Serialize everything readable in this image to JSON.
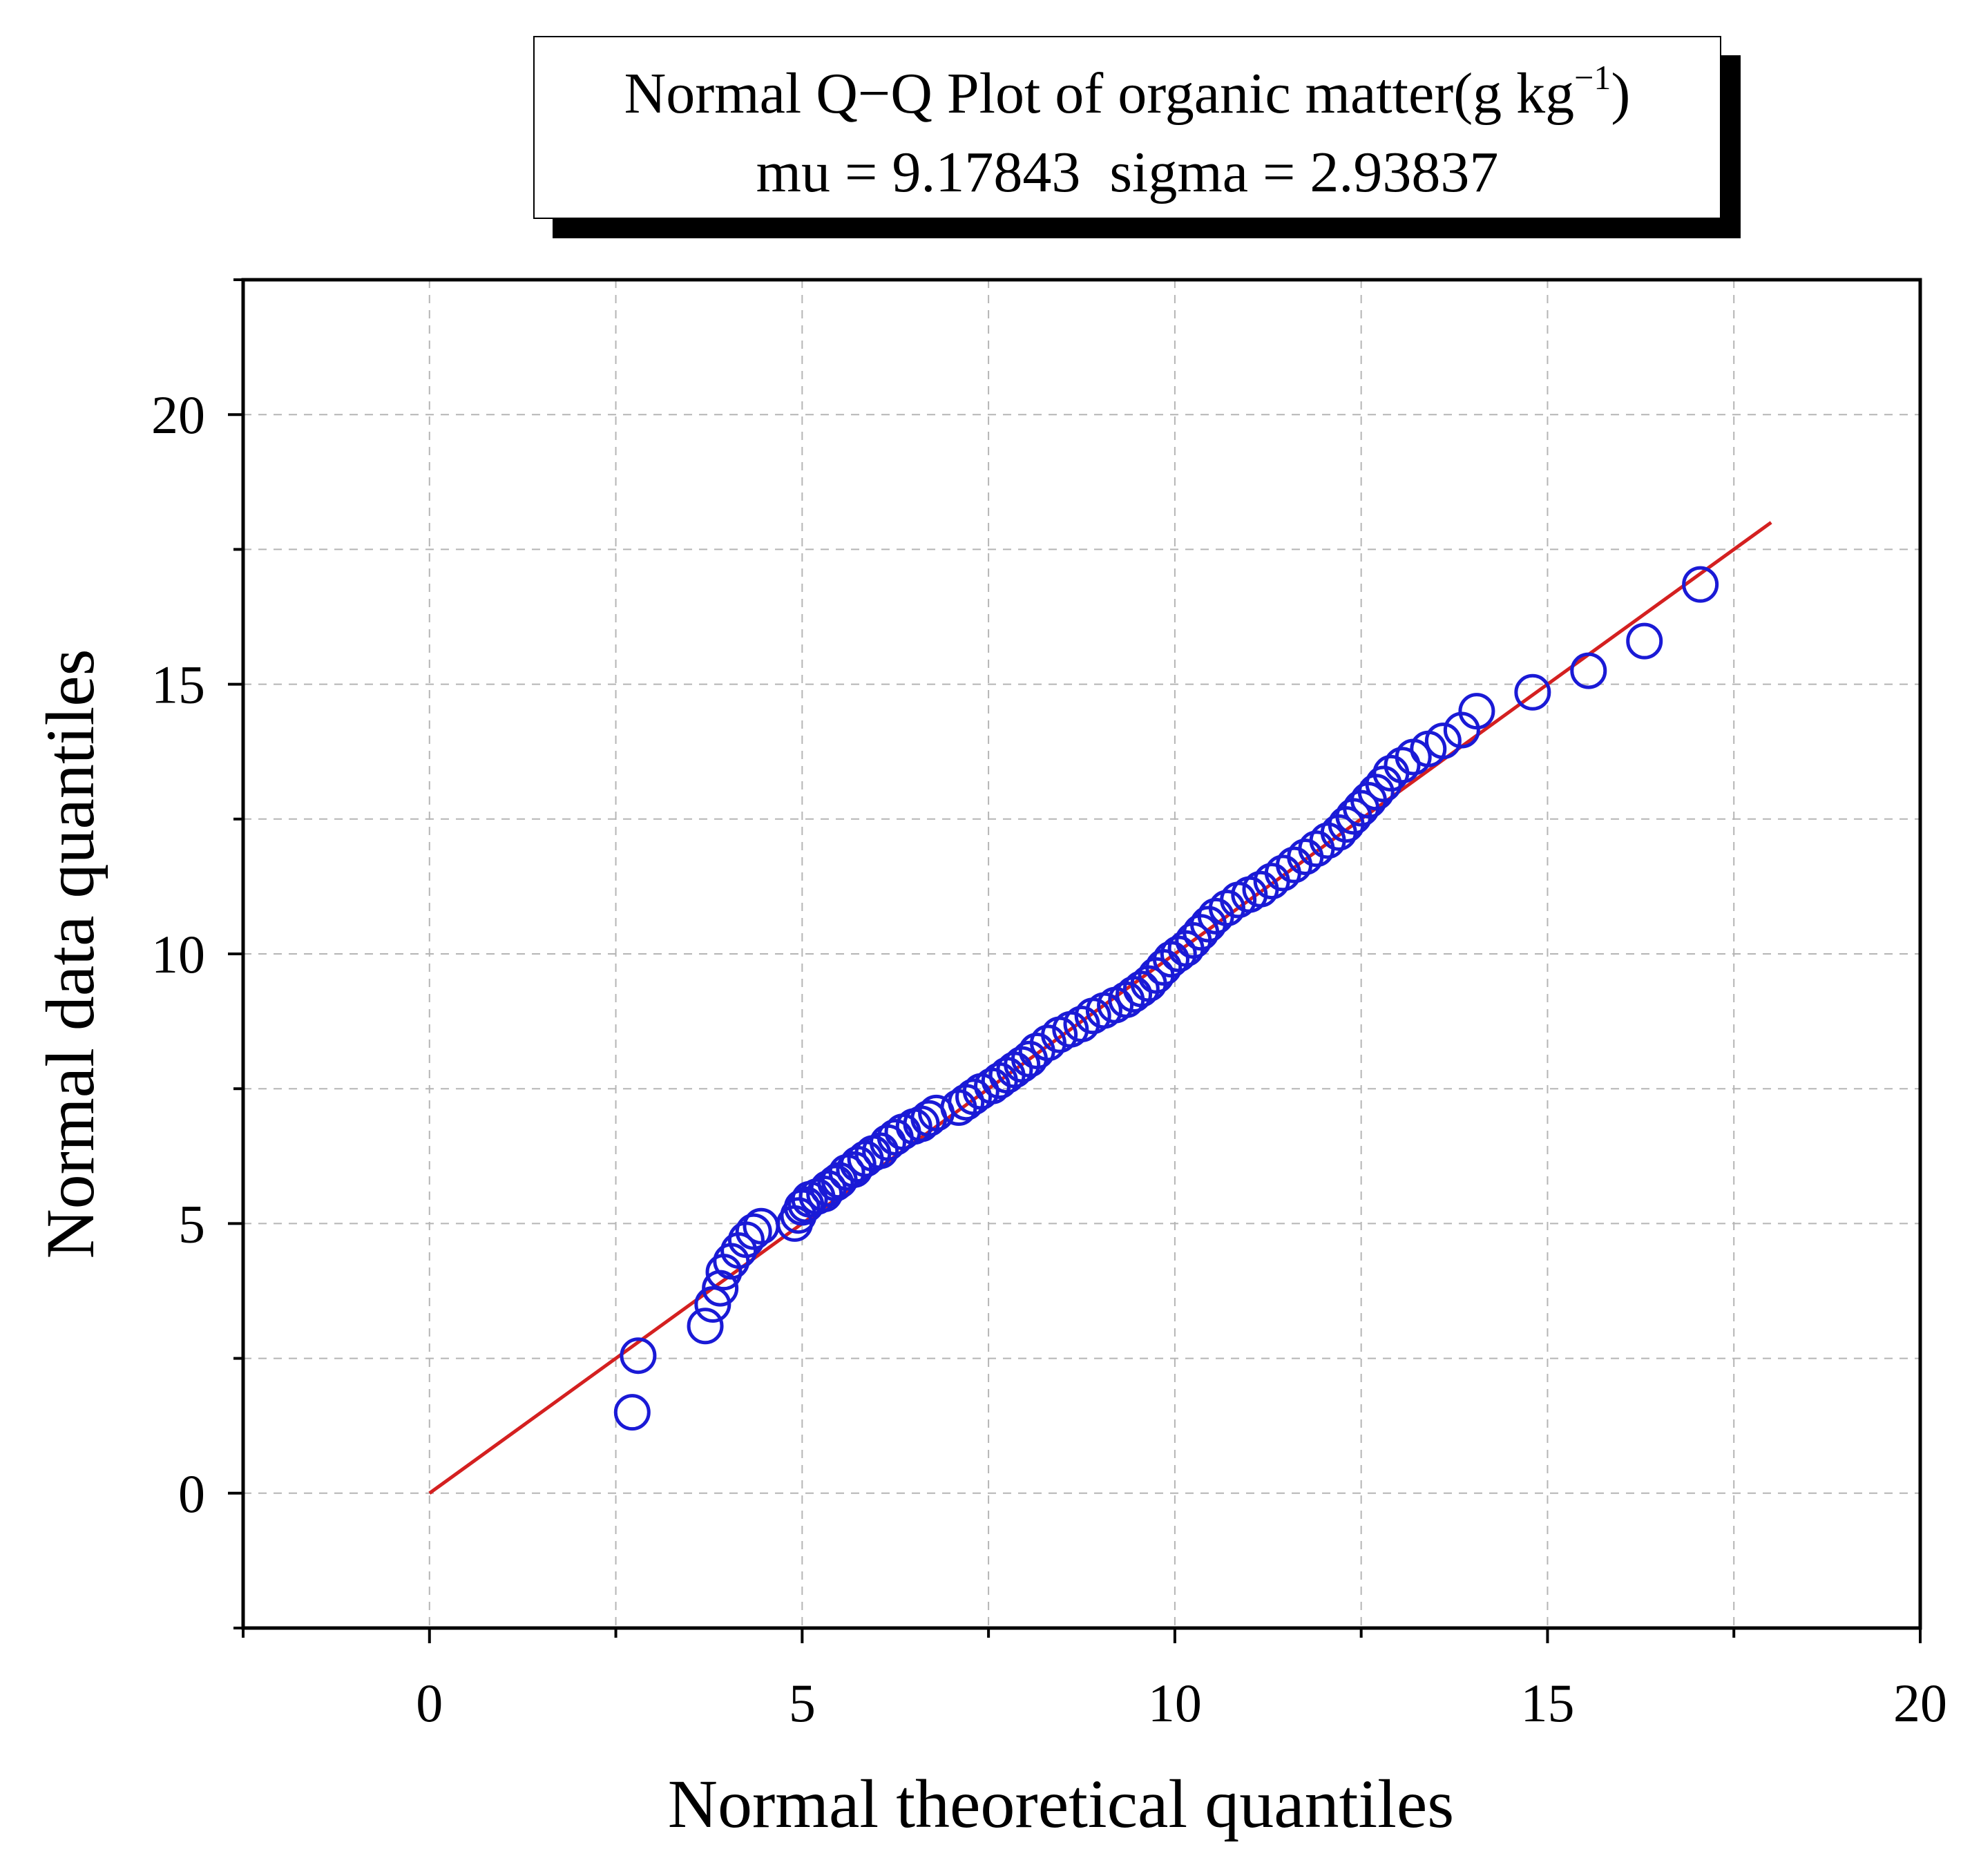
{
  "chart_data": {
    "type": "scatter",
    "title_prefix": "Normal Q−Q Plot of organic matter(g kg",
    "title_sup": "−1",
    "title_suffix": ")",
    "subtitle": "mu = 9.17843  sigma = 2.93837",
    "xlabel": "Normal theoretical quantiles",
    "ylabel": "Normal data quantiles",
    "xlim": [
      -2.5,
      20
    ],
    "ylim": [
      -2.5,
      22.5
    ],
    "x_ticks": [
      "0",
      "5",
      "10",
      "15",
      "20"
    ],
    "y_ticks": [
      "0",
      "5",
      "10",
      "15",
      "20"
    ],
    "grid": true,
    "colors": {
      "points": "#1a1ad6",
      "line": "#d42020",
      "grid": "#b5b5b5",
      "axis": "#000000"
    },
    "reference_line": {
      "x": [
        0,
        18
      ],
      "y": [
        0,
        18
      ]
    },
    "series": [
      {
        "name": "organic matter",
        "x": [
          2.72,
          2.8,
          3.7,
          3.8,
          3.9,
          3.95,
          4.05,
          4.15,
          4.25,
          4.35,
          4.45,
          4.9,
          4.95,
          5.0,
          5.05,
          5.1,
          5.2,
          5.3,
          5.35,
          5.45,
          5.5,
          5.6,
          5.7,
          5.75,
          5.85,
          5.95,
          6.05,
          6.15,
          6.25,
          6.35,
          6.5,
          6.6,
          6.7,
          6.8,
          7.1,
          7.2,
          7.3,
          7.4,
          7.55,
          7.65,
          7.75,
          7.85,
          7.95,
          8.05,
          8.15,
          8.3,
          8.45,
          8.6,
          8.75,
          8.9,
          9.05,
          9.2,
          9.35,
          9.45,
          9.55,
          9.65,
          9.75,
          9.85,
          9.95,
          10.05,
          10.15,
          10.25,
          10.35,
          10.45,
          10.55,
          10.7,
          10.85,
          11.0,
          11.15,
          11.3,
          11.45,
          11.6,
          11.75,
          11.9,
          12.05,
          12.2,
          12.3,
          12.4,
          12.5,
          12.6,
          12.7,
          12.8,
          12.9,
          13.05,
          13.2,
          13.4,
          13.6,
          13.85,
          14.05,
          14.8,
          15.55,
          16.3,
          17.05
        ],
        "y": [
          1.5,
          2.55,
          3.1,
          3.5,
          3.8,
          4.1,
          4.3,
          4.5,
          4.7,
          4.85,
          4.95,
          5.0,
          5.15,
          5.3,
          5.35,
          5.45,
          5.5,
          5.55,
          5.65,
          5.75,
          5.8,
          5.95,
          6.0,
          6.1,
          6.2,
          6.3,
          6.35,
          6.5,
          6.6,
          6.7,
          6.8,
          6.85,
          6.95,
          7.05,
          7.15,
          7.25,
          7.35,
          7.45,
          7.55,
          7.65,
          7.75,
          7.85,
          7.95,
          8.05,
          8.2,
          8.35,
          8.5,
          8.6,
          8.7,
          8.85,
          8.95,
          9.05,
          9.15,
          9.25,
          9.35,
          9.45,
          9.6,
          9.75,
          9.9,
          10.0,
          10.1,
          10.25,
          10.4,
          10.55,
          10.7,
          10.85,
          11.0,
          11.1,
          11.2,
          11.35,
          11.5,
          11.65,
          11.8,
          11.95,
          12.1,
          12.25,
          12.4,
          12.55,
          12.7,
          12.85,
          13.0,
          13.15,
          13.35,
          13.5,
          13.65,
          13.8,
          13.95,
          14.15,
          14.5,
          14.85,
          15.25,
          15.8,
          16.85
        ]
      }
    ]
  }
}
